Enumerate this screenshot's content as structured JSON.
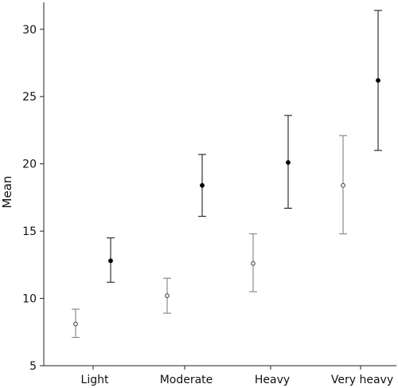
{
  "chart_data": {
    "type": "scatter",
    "title": "",
    "xlabel": "",
    "ylabel": "Mean",
    "categories": [
      "Light",
      "Moderate",
      "Heavy",
      "Very heavy"
    ],
    "ylim": [
      5,
      32
    ],
    "yticks": [
      5,
      10,
      15,
      20,
      25,
      30
    ],
    "grid": false,
    "legend": "none",
    "series": [
      {
        "marker": "open-circle",
        "color": "#8c8c8c",
        "values": [
          8.1,
          10.2,
          12.6,
          18.4
        ],
        "lower": [
          7.1,
          8.9,
          10.5,
          14.8
        ],
        "upper": [
          9.2,
          11.5,
          14.8,
          22.1
        ]
      },
      {
        "marker": "filled-circle",
        "color": "#333333",
        "values": [
          12.8,
          18.4,
          20.1,
          26.2
        ],
        "lower": [
          11.2,
          16.1,
          16.7,
          21.0
        ],
        "upper": [
          14.5,
          20.7,
          23.6,
          31.4
        ]
      }
    ]
  }
}
